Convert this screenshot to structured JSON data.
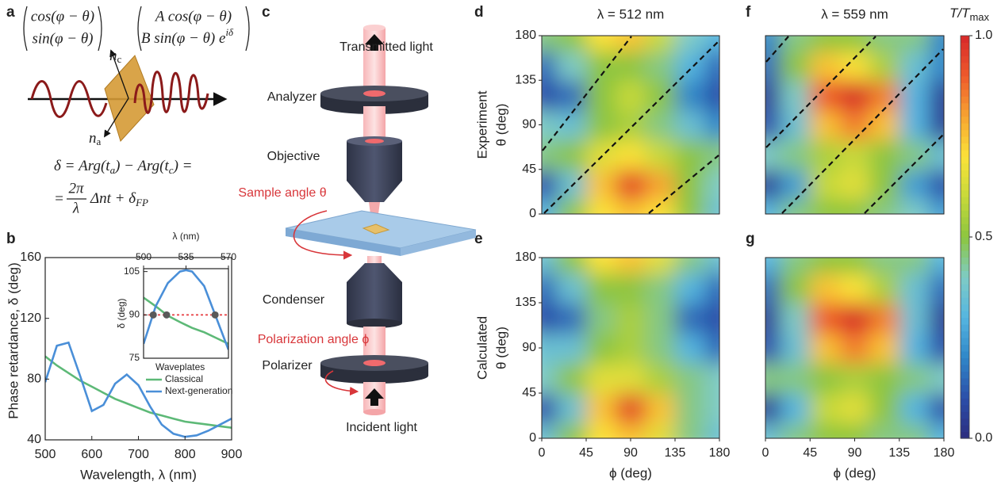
{
  "panel_labels": [
    "a",
    "b",
    "c",
    "d",
    "e",
    "f",
    "g"
  ],
  "panel_a": {
    "jones_in": [
      "cos(φ − θ)",
      "sin(φ − θ)"
    ],
    "jones_out": [
      "A cos(φ − θ)",
      "B sin(φ − θ) e"
    ],
    "phase_exponent": "iδ",
    "axis_c": [
      "n",
      "c"
    ],
    "axis_a": [
      "n",
      "a"
    ],
    "equation_1": [
      "δ = Arg(t",
      "a",
      ") − Arg(t",
      "c",
      ") ="
    ],
    "equation_2": {
      "lead": "=",
      "num": "2π",
      "den": "λ",
      "rest": [
        "Δnt + δ",
        "FP"
      ]
    }
  },
  "panel_c": {
    "labels": [
      "Transmitted light",
      "Analyzer",
      "Objective",
      "Sample angle θ",
      "Condenser",
      "Polarization angle ϕ",
      "Polarizer",
      "Incident light"
    ]
  },
  "chart_data": [
    {
      "type": "line",
      "xlabel": "Wavelength, λ (nm)",
      "ylabel": "Phase retardance, δ (deg)",
      "x": [
        500,
        525,
        550,
        575,
        600,
        625,
        650,
        675,
        700,
        725,
        750,
        775,
        800,
        825,
        850,
        875,
        900
      ],
      "series": [
        {
          "name": "Classical",
          "color": "#5db977",
          "values": [
            95,
            89,
            84,
            79,
            75,
            71,
            67,
            64,
            61,
            58,
            56,
            54,
            52,
            51,
            50,
            49,
            48
          ]
        },
        {
          "name": "Next-generation",
          "color": "#4a8fd8",
          "values": [
            78,
            102,
            104,
            82,
            59,
            63,
            77,
            83,
            76,
            62,
            50,
            44,
            42,
            43,
            46,
            50,
            54
          ]
        }
      ],
      "legend_title": "Waveplates",
      "xlim": [
        500,
        900
      ],
      "ylim": [
        40,
        160
      ],
      "xticks": [
        500,
        600,
        700,
        800,
        900
      ],
      "yticks": [
        40,
        80,
        120,
        160
      ]
    },
    {
      "type": "line",
      "xlabel": "λ (nm)",
      "ylabel": "δ (deg)",
      "x": [
        500,
        510,
        520,
        530,
        535,
        540,
        550,
        560,
        570
      ],
      "series": [
        {
          "color": "#5db977",
          "values": [
            96,
            93,
            89.7,
            87.5,
            86.5,
            85.5,
            84,
            82,
            80
          ]
        },
        {
          "color": "#4a8fd8",
          "values": [
            80,
            93,
            101,
            105,
            105.5,
            105,
            100,
            89,
            78
          ]
        }
      ],
      "reference_line": {
        "value": 90,
        "color": "#e8474a"
      },
      "points": {
        "x": [
          508,
          519,
          559
        ],
        "y": [
          90,
          90,
          90
        ],
        "color": "#5a5a5a"
      },
      "xlim": [
        500,
        570
      ],
      "ylim": [
        75,
        106
      ],
      "xticks": [
        500,
        535,
        570
      ],
      "yticks": [
        75,
        90,
        105
      ]
    },
    {
      "type": "heatmap",
      "title": "λ = 512 nm",
      "row_label": "Experiment",
      "ylabel": "θ (deg)",
      "x": [
        0,
        30,
        60,
        90,
        120,
        150,
        180
      ],
      "y": [
        0,
        30,
        60,
        90,
        120,
        150,
        180
      ],
      "z": [
        [
          0.3,
          0.5,
          0.7,
          0.75,
          0.7,
          0.5,
          0.35
        ],
        [
          0.1,
          0.35,
          0.75,
          0.95,
          0.8,
          0.5,
          0.4
        ],
        [
          0.45,
          0.5,
          0.65,
          0.7,
          0.6,
          0.5,
          0.45
        ],
        [
          0.4,
          0.35,
          0.5,
          0.55,
          0.45,
          0.35,
          0.2
        ],
        [
          0.1,
          0.15,
          0.5,
          0.6,
          0.5,
          0.2,
          0.1
        ],
        [
          0.15,
          0.4,
          0.5,
          0.5,
          0.45,
          0.3,
          0.15
        ],
        [
          0.45,
          0.5,
          0.7,
          0.75,
          0.6,
          0.4,
          0.3
        ]
      ],
      "xlim": [
        0,
        180
      ],
      "ylim": [
        0,
        180
      ],
      "yticks": [
        0,
        45,
        90,
        135,
        180
      ]
    },
    {
      "type": "heatmap",
      "row_label": "Calculated",
      "ylabel": "θ (deg)",
      "xlabel": "ϕ (deg)",
      "x": [
        0,
        30,
        60,
        90,
        120,
        150,
        180
      ],
      "y": [
        0,
        30,
        60,
        90,
        120,
        150,
        180
      ],
      "z": [
        [
          0.35,
          0.5,
          0.7,
          0.75,
          0.65,
          0.45,
          0.35
        ],
        [
          0.1,
          0.35,
          0.75,
          0.95,
          0.75,
          0.45,
          0.4
        ],
        [
          0.4,
          0.5,
          0.65,
          0.65,
          0.55,
          0.45,
          0.4
        ],
        [
          0.35,
          0.35,
          0.5,
          0.55,
          0.45,
          0.3,
          0.15
        ],
        [
          0.1,
          0.15,
          0.45,
          0.55,
          0.45,
          0.15,
          0.1
        ],
        [
          0.15,
          0.35,
          0.5,
          0.5,
          0.45,
          0.3,
          0.15
        ],
        [
          0.35,
          0.5,
          0.7,
          0.75,
          0.65,
          0.45,
          0.35
        ]
      ],
      "xlim": [
        0,
        180
      ],
      "ylim": [
        0,
        180
      ],
      "xticks": [
        0,
        45,
        90,
        135,
        180
      ],
      "yticks": [
        0,
        45,
        90,
        135,
        180
      ]
    },
    {
      "type": "heatmap",
      "title": "λ = 559 nm",
      "x": [
        0,
        30,
        60,
        90,
        120,
        150,
        180
      ],
      "y": [
        0,
        30,
        60,
        90,
        120,
        150,
        180
      ],
      "z": [
        [
          0.3,
          0.45,
          0.5,
          0.5,
          0.45,
          0.4,
          0.25
        ],
        [
          0.05,
          0.25,
          0.6,
          0.65,
          0.5,
          0.25,
          0.1
        ],
        [
          0.4,
          0.45,
          0.55,
          0.6,
          0.5,
          0.45,
          0.35
        ],
        [
          0.1,
          0.35,
          0.75,
          0.85,
          0.75,
          0.3,
          0.05
        ],
        [
          0.05,
          0.4,
          0.9,
          1.0,
          0.85,
          0.3,
          0.05
        ],
        [
          0.15,
          0.5,
          0.75,
          0.7,
          0.55,
          0.35,
          0.2
        ],
        [
          0.2,
          0.45,
          0.5,
          0.5,
          0.45,
          0.45,
          0.2
        ]
      ],
      "xlim": [
        0,
        180
      ],
      "ylim": [
        0,
        180
      ]
    },
    {
      "type": "heatmap",
      "xlabel": "ϕ (deg)",
      "x": [
        0,
        30,
        60,
        90,
        120,
        150,
        180
      ],
      "y": [
        0,
        30,
        60,
        90,
        120,
        150,
        180
      ],
      "z": [
        [
          0.35,
          0.45,
          0.5,
          0.5,
          0.45,
          0.45,
          0.3
        ],
        [
          0.05,
          0.3,
          0.6,
          0.65,
          0.5,
          0.3,
          0.1
        ],
        [
          0.45,
          0.45,
          0.5,
          0.55,
          0.5,
          0.45,
          0.4
        ],
        [
          0.1,
          0.35,
          0.75,
          0.85,
          0.75,
          0.3,
          0.1
        ],
        [
          0.05,
          0.4,
          0.9,
          1.0,
          0.85,
          0.35,
          0.05
        ],
        [
          0.15,
          0.5,
          0.75,
          0.7,
          0.55,
          0.35,
          0.15
        ],
        [
          0.3,
          0.45,
          0.5,
          0.5,
          0.45,
          0.45,
          0.3
        ]
      ],
      "xlim": [
        0,
        180
      ],
      "ylim": [
        0,
        180
      ],
      "xticks": [
        0,
        45,
        90,
        135,
        180
      ]
    },
    {
      "type": "colorbar",
      "label": [
        "T/T",
        "max"
      ],
      "lim": [
        0,
        1
      ],
      "ticks": [
        {
          "value": 0,
          "label": "0.0"
        },
        {
          "value": 0.5,
          "label": "0.5"
        },
        {
          "value": 1,
          "label": "1.0"
        }
      ],
      "colormap": [
        "#2c2c7f",
        "#2b4ea8",
        "#2f86c8",
        "#55b5e0",
        "#7ecbc6",
        "#8cc53f",
        "#c7d93a",
        "#fbe239",
        "#f7a431",
        "#ee5a2b",
        "#d7282a"
      ]
    }
  ]
}
